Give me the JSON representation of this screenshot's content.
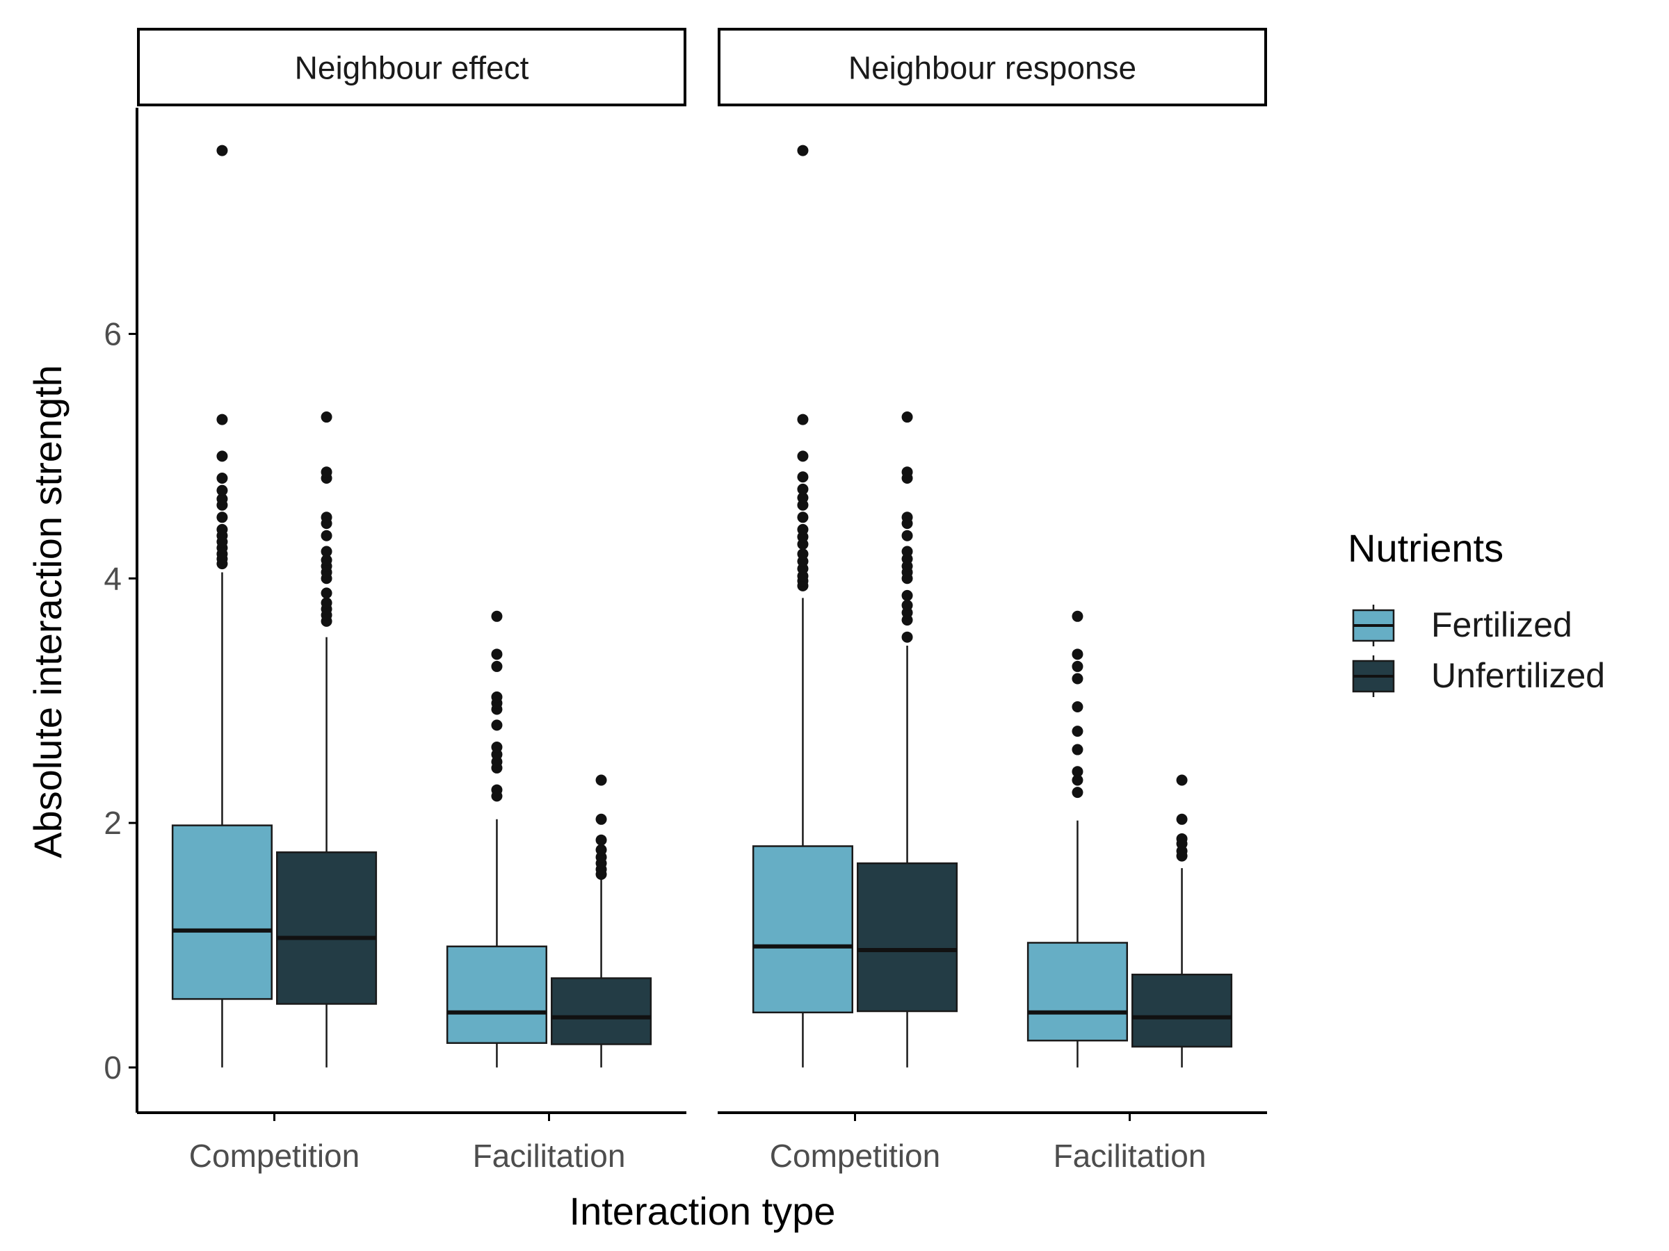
{
  "chart_data": {
    "type": "boxplot",
    "xlabel": "Interaction type",
    "ylabel": "Absolute interaction strength",
    "ylim": [
      -0.37,
      7.85
    ],
    "yticks": [
      0,
      2,
      4,
      6
    ],
    "categories": [
      "Competition",
      "Facilitation"
    ],
    "legend": {
      "title": "Nutrients",
      "placement": "right",
      "entries": [
        {
          "name": "Fertilized",
          "color": "#66AEC5"
        },
        {
          "name": "Unfertilized",
          "color": "#233C45"
        }
      ]
    },
    "panels": [
      {
        "title": "Neighbour effect",
        "boxes": [
          {
            "category": "Competition",
            "group": "Fertilized",
            "min": 0,
            "q1": 0.56,
            "median": 1.12,
            "q3": 1.98,
            "max": 4.05,
            "outliers": [
              4.12,
              4.16,
              4.2,
              4.25,
              4.3,
              4.35,
              4.4,
              4.5,
              4.6,
              4.65,
              4.72,
              4.82,
              5.0,
              5.3,
              7.5
            ]
          },
          {
            "category": "Competition",
            "group": "Unfertilized",
            "min": 0,
            "q1": 0.52,
            "median": 1.06,
            "q3": 1.76,
            "max": 3.52,
            "outliers": [
              3.65,
              3.7,
              3.75,
              3.8,
              3.88,
              4.0,
              4.05,
              4.1,
              4.15,
              4.22,
              4.35,
              4.45,
              4.5,
              4.82,
              4.87,
              5.32
            ]
          },
          {
            "category": "Facilitation",
            "group": "Fertilized",
            "min": 0,
            "q1": 0.2,
            "median": 0.45,
            "q3": 0.99,
            "max": 2.03,
            "outliers": [
              2.22,
              2.27,
              2.45,
              2.5,
              2.56,
              2.62,
              2.8,
              2.93,
              2.98,
              3.03,
              3.28,
              3.38,
              3.69
            ]
          },
          {
            "category": "Facilitation",
            "group": "Unfertilized",
            "min": 0,
            "q1": 0.19,
            "median": 0.41,
            "q3": 0.73,
            "max": 1.55,
            "outliers": [
              1.58,
              1.62,
              1.67,
              1.72,
              1.78,
              1.86,
              2.03,
              2.35
            ]
          }
        ]
      },
      {
        "title": "Neighbour response",
        "boxes": [
          {
            "category": "Competition",
            "group": "Fertilized",
            "min": 0,
            "q1": 0.45,
            "median": 0.99,
            "q3": 1.81,
            "max": 3.84,
            "outliers": [
              3.94,
              3.98,
              4.02,
              4.08,
              4.14,
              4.2,
              4.28,
              4.34,
              4.4,
              4.5,
              4.6,
              4.66,
              4.73,
              4.83,
              5.0,
              5.3,
              7.5
            ]
          },
          {
            "category": "Competition",
            "group": "Unfertilized",
            "min": 0,
            "q1": 0.46,
            "median": 0.96,
            "q3": 1.67,
            "max": 3.45,
            "outliers": [
              3.52,
              3.66,
              3.72,
              3.78,
              3.86,
              4.0,
              4.05,
              4.1,
              4.16,
              4.22,
              4.35,
              4.45,
              4.5,
              4.82,
              4.87,
              5.32
            ]
          },
          {
            "category": "Facilitation",
            "group": "Fertilized",
            "min": 0,
            "q1": 0.22,
            "median": 0.45,
            "q3": 1.02,
            "max": 2.02,
            "outliers": [
              2.25,
              2.35,
              2.42,
              2.6,
              2.75,
              2.95,
              3.18,
              3.28,
              3.38,
              3.69
            ]
          },
          {
            "category": "Facilitation",
            "group": "Unfertilized",
            "min": 0,
            "q1": 0.17,
            "median": 0.41,
            "q3": 0.76,
            "max": 1.63,
            "outliers": [
              1.73,
              1.77,
              1.83,
              1.87,
              2.03,
              2.35
            ]
          }
        ]
      }
    ]
  }
}
